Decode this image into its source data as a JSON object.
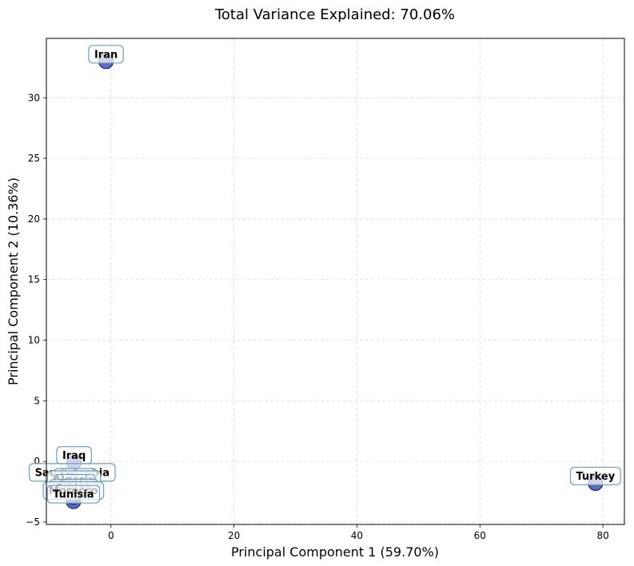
{
  "chart_data": {
    "type": "scatter",
    "title": "Total Variance Explained: 70.06%",
    "xlabel": "Principal Component 1 (59.70%)",
    "ylabel": "Principal Component 2 (10.36%)",
    "xlim": [
      -10.5,
      83.5
    ],
    "ylim": [
      -5.2,
      34.9
    ],
    "xticks": [
      0,
      20,
      40,
      60,
      80
    ],
    "yticks": [
      -5,
      0,
      5,
      10,
      15,
      20,
      25,
      30
    ],
    "grid": true,
    "colors": {
      "point_fill": "#3a47a8",
      "point_edge": "#1a1f7a",
      "label_edge": "#6b9ec0"
    },
    "points": [
      {
        "label": "Iran",
        "x": -0.8,
        "y": 33.0
      },
      {
        "label": "Turkey",
        "x": 78.8,
        "y": -1.8
      },
      {
        "label": "Iraq",
        "x": -6.0,
        "y": -0.1
      },
      {
        "label": "Saudi Arabia",
        "x": -6.3,
        "y": -1.5
      },
      {
        "label": "Libya",
        "x": -5.8,
        "y": -1.9
      },
      {
        "label": "Algeria",
        "x": -6.0,
        "y": -2.1
      },
      {
        "label": "Syria",
        "x": -5.9,
        "y": -2.4
      },
      {
        "label": "Sudan",
        "x": -6.0,
        "y": -2.8
      },
      {
        "label": "Morocco",
        "x": -6.1,
        "y": -3.0
      },
      {
        "label": "Tunisia",
        "x": -6.1,
        "y": -3.3
      }
    ]
  }
}
